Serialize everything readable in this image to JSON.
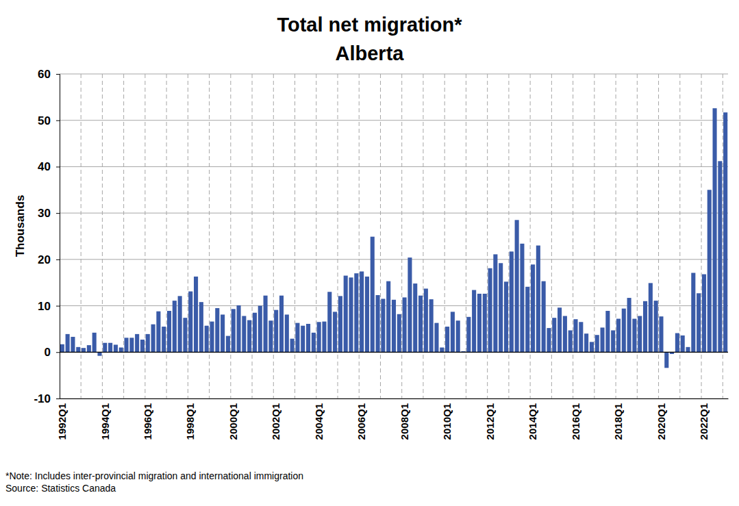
{
  "chart_data": {
    "type": "bar",
    "title": "Total net migration*",
    "subtitle": "Alberta",
    "y_label": "Thousands",
    "annotations": [
      "*Note: Includes inter-provincial migration and international immigration",
      "Source: Statistics Canada"
    ],
    "categories": [
      "1992Q1",
      null,
      null,
      null,
      null,
      null,
      null,
      null,
      "1994Q1",
      null,
      null,
      null,
      null,
      null,
      null,
      null,
      "1996Q1",
      null,
      null,
      null,
      null,
      null,
      null,
      null,
      "1998Q1",
      null,
      null,
      null,
      null,
      null,
      null,
      null,
      "2000Q1",
      null,
      null,
      null,
      null,
      null,
      null,
      null,
      "2002Q1",
      null,
      null,
      null,
      null,
      null,
      null,
      null,
      "2004Q1",
      null,
      null,
      null,
      null,
      null,
      null,
      null,
      "2006Q1",
      null,
      null,
      null,
      null,
      null,
      null,
      null,
      "2008Q1",
      null,
      null,
      null,
      null,
      null,
      null,
      null,
      "2010Q1",
      null,
      null,
      null,
      null,
      null,
      null,
      null,
      "2012Q1",
      null,
      null,
      null,
      null,
      null,
      null,
      null,
      "2014Q1",
      null,
      null,
      null,
      null,
      null,
      null,
      null,
      "2016Q1",
      null,
      null,
      null,
      null,
      null,
      null,
      null,
      "2018Q1",
      null,
      null,
      null,
      null,
      null,
      null,
      null,
      "2020Q1",
      null,
      null,
      null,
      null,
      null,
      null,
      null,
      "2022Q1",
      null,
      null,
      null,
      null
    ],
    "values": [
      1.7,
      3.9,
      3.3,
      1.1,
      0.9,
      1.5,
      4.2,
      -0.8,
      2.0,
      2.0,
      1.6,
      1.0,
      3.1,
      3.1,
      3.9,
      2.7,
      3.9,
      6.0,
      8.8,
      5.5,
      8.9,
      11.1,
      12.1,
      7.4,
      13.1,
      16.3,
      10.8,
      5.7,
      6.6,
      9.5,
      8.1,
      3.5,
      9.3,
      10.1,
      7.8,
      6.9,
      8.5,
      10.0,
      12.2,
      6.8,
      9.1,
      12.2,
      8.1,
      2.9,
      6.3,
      5.7,
      6.1,
      4.2,
      6.5,
      6.6,
      13.0,
      8.7,
      12.1,
      16.5,
      16.1,
      17.0,
      17.4,
      16.3,
      24.9,
      12.3,
      11.5,
      15.3,
      11.3,
      8.2,
      11.8,
      20.4,
      14.8,
      12.2,
      13.7,
      11.4,
      6.3,
      1.0,
      5.5,
      8.7,
      6.8,
      0.2,
      7.6,
      13.4,
      12.6,
      12.6,
      18.1,
      21.1,
      19.2,
      15.2,
      21.7,
      28.5,
      23.4,
      14.1,
      18.9,
      23.0,
      15.3,
      5.2,
      7.4,
      9.6,
      7.8,
      4.7,
      7.1,
      6.5,
      4.0,
      2.2,
      3.7,
      5.3,
      8.9,
      4.7,
      7.2,
      9.4,
      11.7,
      7.2,
      7.8,
      11.0,
      14.9,
      11.1,
      7.7,
      -3.4,
      -0.4,
      4.1,
      3.6,
      1.1,
      17.1,
      12.7,
      16.8,
      35.0,
      52.6,
      41.2,
      51.7
    ],
    "color": "#3a5ba8",
    "ylim": [
      -10,
      60
    ],
    "yticks": [
      -10,
      0,
      10,
      20,
      30,
      40,
      50,
      60
    ],
    "grid": true
  }
}
